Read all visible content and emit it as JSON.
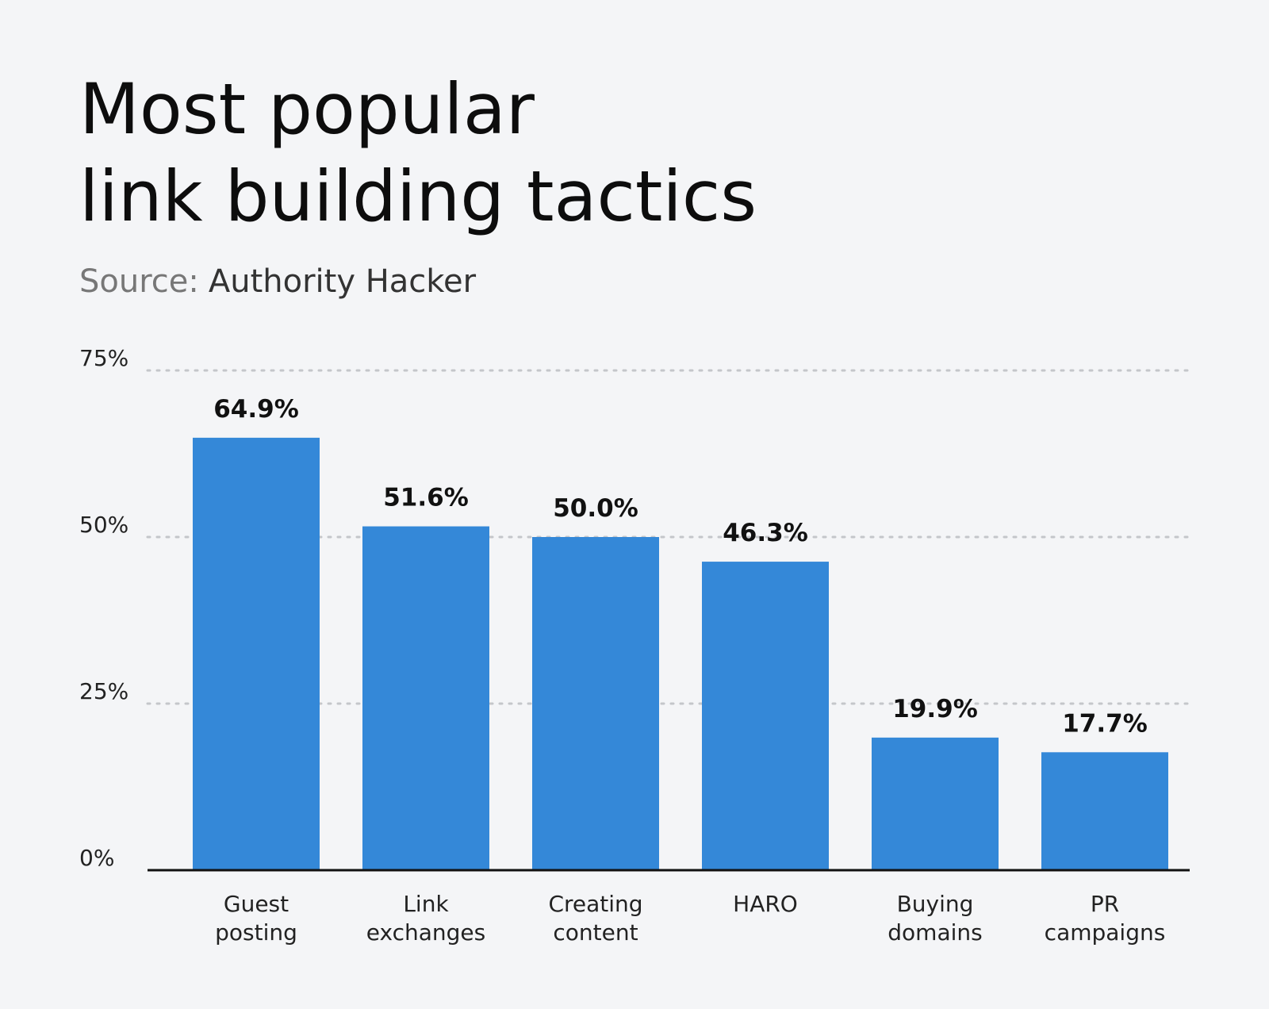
{
  "chart_data": {
    "type": "bar",
    "title": "Most popular\nlink building tactics",
    "source_label": "Source:",
    "source": "Authority Hacker",
    "categories": [
      "Guest\nposting",
      "Link\nexchanges",
      "Creating\ncontent",
      "HARO",
      "Buying\ndomains",
      "PR\ncampaigns"
    ],
    "values": [
      64.9,
      51.6,
      50.0,
      46.3,
      19.9,
      17.7
    ],
    "value_labels": [
      "64.9%",
      "51.6%",
      "50.0%",
      "46.3%",
      "19.9%",
      "17.7%"
    ],
    "color": "#3488d8",
    "ylim": [
      0,
      75
    ],
    "yticks": [
      {
        "value": 0,
        "label": "0%"
      },
      {
        "value": 25,
        "label": "25%"
      },
      {
        "value": 50,
        "label": "50%"
      },
      {
        "value": 75,
        "label": "75%"
      }
    ],
    "grid": true
  }
}
